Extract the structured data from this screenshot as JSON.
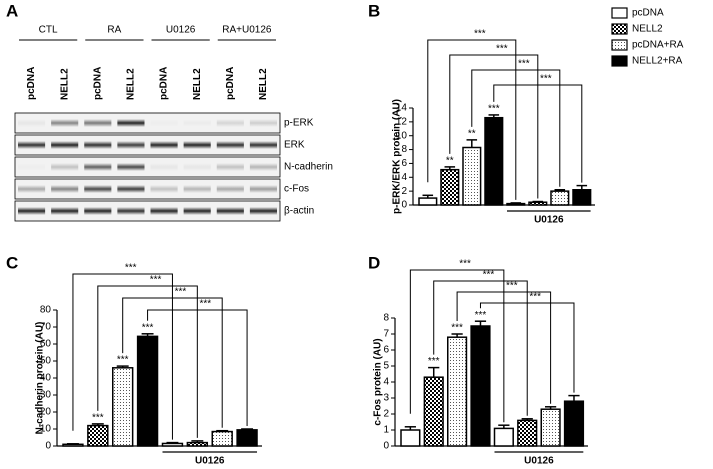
{
  "panels": [
    "A",
    "B",
    "C",
    "D"
  ],
  "blot": {
    "groups": [
      "CTL",
      "RA",
      "U0126",
      "RA+U0126"
    ],
    "lanes": [
      "pcDNA",
      "NELL2",
      "pcDNA",
      "NELL2",
      "pcDNA",
      "NELL2",
      "pcDNA",
      "NELL2"
    ],
    "rows": [
      "p-ERK",
      "ERK",
      "N-cadherin",
      "c-Fos",
      "β-actin"
    ]
  },
  "chart_data": [
    {
      "type": "bar",
      "ylabel": "p-ERK/ERK protein (AU)",
      "ylim": [
        0,
        14
      ],
      "yticks": [
        0,
        2,
        4,
        6,
        8,
        10,
        12,
        14
      ],
      "categories": [
        null,
        "U0126"
      ],
      "legend": true,
      "series": [
        {
          "name": "pcDNA",
          "pattern": "white",
          "color": "#000000",
          "values": [
            1.0,
            0.2
          ],
          "errors": [
            0.4,
            0.1
          ],
          "stars": [
            null,
            null
          ]
        },
        {
          "name": "NELL2",
          "pattern": "checker",
          "color": "#000000",
          "values": [
            5.1,
            0.4
          ],
          "errors": [
            0.4,
            0.1
          ],
          "stars": [
            "**",
            null
          ]
        },
        {
          "name": "pcDNA+RA",
          "pattern": "dots",
          "color": "#000000",
          "values": [
            8.3,
            2.0
          ],
          "errors": [
            1.1,
            0.2
          ],
          "stars": [
            "**",
            null
          ]
        },
        {
          "name": "NELL2+RA",
          "pattern": "black",
          "color": "#000000",
          "values": [
            12.6,
            2.2
          ],
          "errors": [
            0.4,
            0.6
          ],
          "stars": [
            "***",
            null
          ]
        }
      ],
      "comparisons": [
        "***",
        "***",
        "***",
        "***"
      ]
    },
    {
      "type": "bar",
      "ylabel": "N-cadherin protein (AU)",
      "ylim": [
        0,
        80
      ],
      "yticks": [
        0,
        10,
        20,
        30,
        40,
        50,
        60,
        70,
        80
      ],
      "categories": [
        null,
        "U0126"
      ],
      "legend": false,
      "series": [
        {
          "pattern": "white",
          "color": "#000000",
          "values": [
            1,
            1.5
          ],
          "errors": [
            0.3,
            0.5
          ],
          "stars": [
            null,
            null
          ]
        },
        {
          "pattern": "checker",
          "color": "#000000",
          "values": [
            12,
            2
          ],
          "errors": [
            1,
            1
          ],
          "stars": [
            "***",
            null
          ]
        },
        {
          "pattern": "dots",
          "color": "#000000",
          "values": [
            46,
            8.5
          ],
          "errors": [
            1,
            0.5
          ],
          "stars": [
            "***",
            null
          ]
        },
        {
          "pattern": "black",
          "color": "#000000",
          "values": [
            64.5,
            9.5
          ],
          "errors": [
            1.5,
            0.5
          ],
          "stars": [
            "***",
            null
          ]
        }
      ],
      "comparisons": [
        "***",
        "***",
        "***",
        "***"
      ]
    },
    {
      "type": "bar",
      "ylabel": "c-Fos protein (AU)",
      "ylim": [
        0,
        8
      ],
      "yticks": [
        0,
        1,
        2,
        3,
        4,
        5,
        6,
        7,
        8
      ],
      "categories": [
        null,
        "U0126"
      ],
      "legend": false,
      "series": [
        {
          "pattern": "white",
          "color": "#000000",
          "values": [
            1.0,
            1.1
          ],
          "errors": [
            0.2,
            0.2
          ],
          "stars": [
            null,
            null
          ]
        },
        {
          "pattern": "checker",
          "color": "#000000",
          "values": [
            4.3,
            1.6
          ],
          "errors": [
            0.6,
            0.1
          ],
          "stars": [
            "***",
            null
          ]
        },
        {
          "pattern": "dots",
          "color": "#000000",
          "values": [
            6.8,
            2.3
          ],
          "errors": [
            0.2,
            0.15
          ],
          "stars": [
            "***",
            null
          ]
        },
        {
          "pattern": "black",
          "color": "#000000",
          "values": [
            7.5,
            2.8
          ],
          "errors": [
            0.3,
            0.35
          ],
          "stars": [
            "***",
            null
          ]
        }
      ],
      "comparisons": [
        "***",
        "***",
        "***",
        "***"
      ]
    }
  ]
}
